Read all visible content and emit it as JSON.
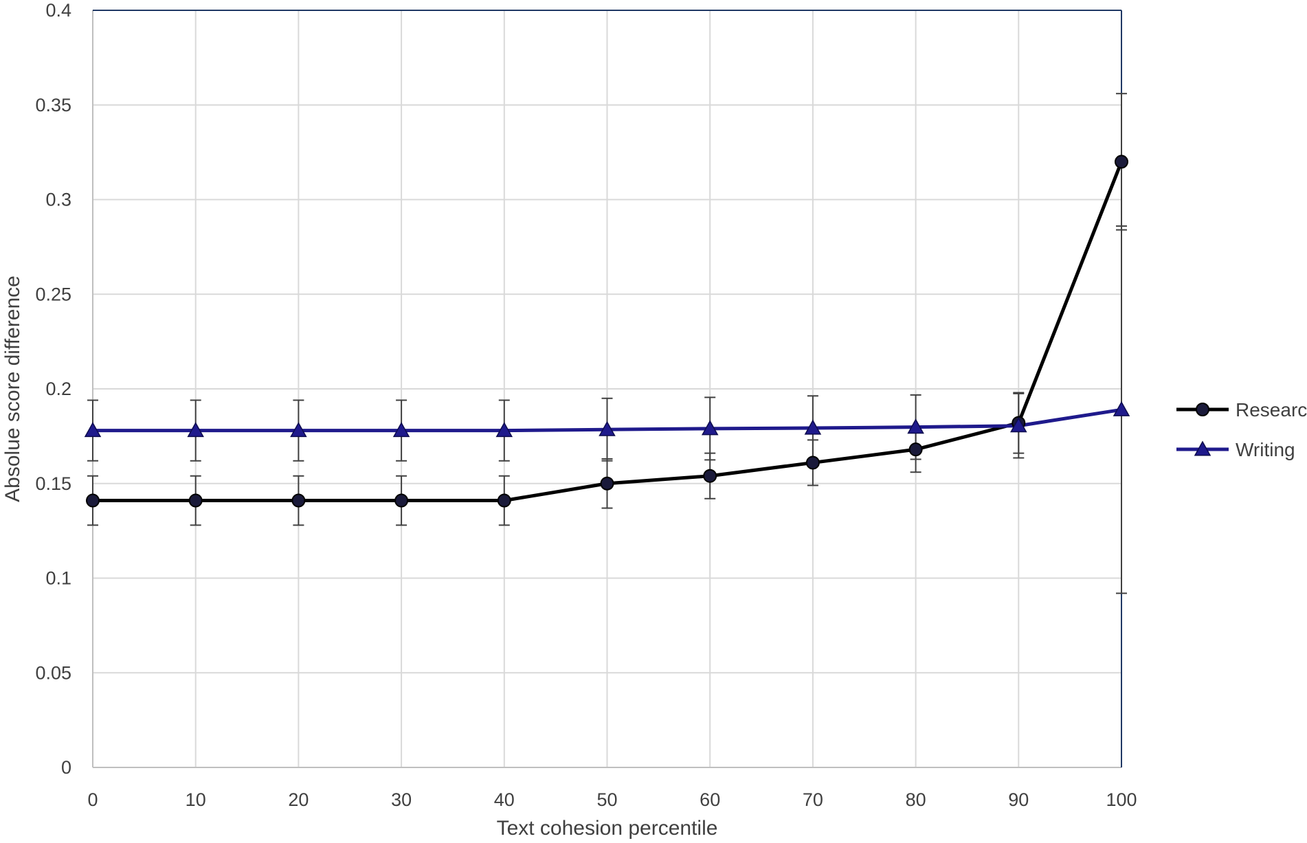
{
  "chart_data": {
    "type": "line",
    "title": "",
    "xlabel": "Text cohesion percentile",
    "ylabel": "Absolue score difference",
    "x": [
      0,
      10,
      20,
      30,
      40,
      50,
      60,
      70,
      80,
      90,
      100
    ],
    "x_tick_labels": [
      "0",
      "10",
      "20",
      "30",
      "40",
      "50",
      "60",
      "70",
      "80",
      "90",
      "100"
    ],
    "y_tick_values": [
      0,
      0.05,
      0.1,
      0.15,
      0.2,
      0.25,
      0.3,
      0.35,
      0.4
    ],
    "y_tick_labels": [
      "0",
      "0.05",
      "0.1",
      "0.15",
      "0.2",
      "0.25",
      "0.3",
      "0.35",
      "0.4"
    ],
    "xlim": [
      0,
      100
    ],
    "ylim": [
      0,
      0.4
    ],
    "grid": true,
    "legend_position": "right",
    "series": [
      {
        "name": "Research",
        "marker": "circle",
        "color": "#000000",
        "values": [
          0.141,
          0.141,
          0.141,
          0.141,
          0.141,
          0.15,
          0.154,
          0.161,
          0.168,
          0.182,
          0.32
        ],
        "error": [
          0.013,
          0.013,
          0.013,
          0.013,
          0.013,
          0.013,
          0.012,
          0.012,
          0.012,
          0.016,
          0.036
        ],
        "error_cap_style": "bar"
      },
      {
        "name": "Writing",
        "marker": "triangle",
        "color": "#1f1a8c",
        "values": [
          0.178,
          0.178,
          0.178,
          0.178,
          0.178,
          0.1785,
          0.179,
          0.1793,
          0.1798,
          0.1805,
          0.189
        ],
        "error": [
          0.016,
          0.016,
          0.016,
          0.016,
          0.016,
          0.0165,
          0.0165,
          0.017,
          0.017,
          0.017,
          0.097
        ],
        "error_cap_style": "bar"
      }
    ]
  },
  "colors": {
    "grid": "#d9d9d9",
    "axis": "#bfbfbf",
    "right_border": "#1f3864",
    "error_bar": "#404040",
    "marker_fill": "#1a1a3a"
  }
}
